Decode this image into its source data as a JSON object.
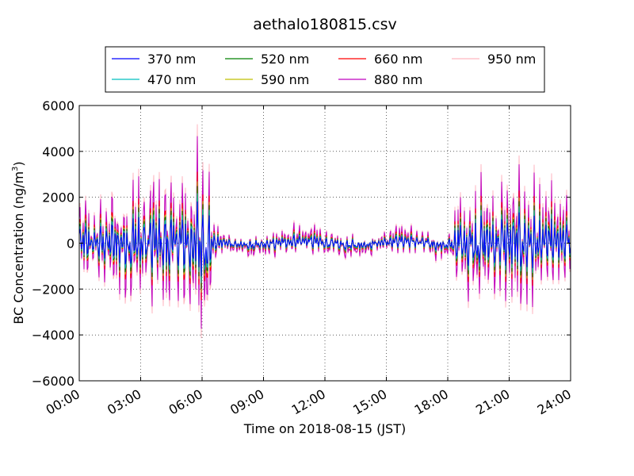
{
  "chart_data": {
    "type": "line",
    "title": "aethalo180815.csv",
    "xlabel": "Time on 2018-08-15 (JST)",
    "ylabel": "BC Concentration (ng/m³)",
    "ylabel_parts": {
      "main": "BC Concentration (ng/m",
      "sup": "3",
      "close": ")"
    },
    "xlim": [
      "00:00",
      "24:00"
    ],
    "ylim": [
      -6000,
      6000
    ],
    "xticks": [
      "00:00",
      "03:00",
      "06:00",
      "09:00",
      "12:00",
      "15:00",
      "18:00",
      "21:00",
      "24:00"
    ],
    "yticks": [
      6000,
      4000,
      2000,
      0,
      -2000,
      -4000,
      -6000
    ],
    "ytick_labels": [
      "6000",
      "4000",
      "2000",
      "0",
      "−2000",
      "−4000",
      "−6000"
    ],
    "grid": true,
    "legend_position": "top",
    "series": [
      {
        "name": "370 nm",
        "color": "#0000ff"
      },
      {
        "name": "470 nm",
        "color": "#00bfbf"
      },
      {
        "name": "520 nm",
        "color": "#008000"
      },
      {
        "name": "590 nm",
        "color": "#bfbf00"
      },
      {
        "name": "660 nm",
        "color": "#ff0000"
      },
      {
        "name": "880 nm",
        "color": "#bf00bf"
      },
      {
        "name": "950 nm",
        "color": "#ffb6c1"
      }
    ],
    "envelope_hours": [
      0,
      0.5,
      1,
      2,
      3,
      4,
      5,
      6,
      6.4,
      6.6,
      7,
      8,
      9,
      10,
      11,
      12,
      13,
      14,
      15,
      16,
      17,
      18,
      18.5,
      19,
      20,
      21,
      22,
      23,
      24
    ],
    "envelope_amplitude": [
      2600,
      2000,
      1800,
      2600,
      3600,
      3400,
      3600,
      4800,
      4600,
      1000,
      500,
      450,
      500,
      600,
      700,
      650,
      600,
      500,
      550,
      600,
      650,
      500,
      2200,
      2600,
      2800,
      3200,
      3000,
      2600,
      2200
    ]
  }
}
